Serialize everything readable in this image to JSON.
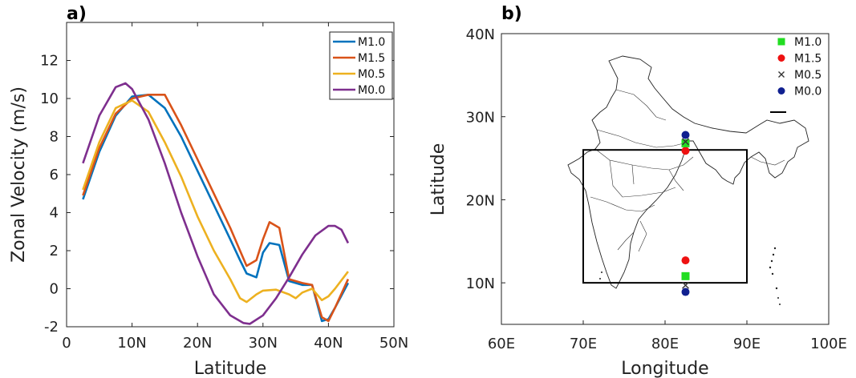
{
  "chart_data": [
    {
      "panel_label": "a)",
      "type": "line",
      "xlabel": "Latitude",
      "ylabel": "Zonal Velocity (m/s)",
      "xlim": [
        0,
        50
      ],
      "ylim": [
        -2,
        14
      ],
      "xticks": [
        0,
        10,
        20,
        30,
        40,
        50
      ],
      "xtick_labels": [
        "0",
        "10N",
        "20N",
        "30N",
        "40N",
        "50N"
      ],
      "yticks": [
        -2,
        0,
        2,
        4,
        6,
        8,
        10,
        12
      ],
      "ytick_labels": [
        "-2",
        "0",
        "2",
        "4",
        "6",
        "8",
        "10",
        "12"
      ],
      "grid": false,
      "legend_position": "top-right",
      "series": [
        {
          "name": "M1.0",
          "color": "#0072BD",
          "x": [
            2.5,
            5,
            7.5,
            10,
            12.5,
            15,
            17.5,
            20,
            22.5,
            25,
            26.5,
            27.5,
            29,
            30,
            31,
            32.5,
            34,
            36,
            37.5,
            39,
            40,
            41,
            43
          ],
          "y": [
            4.7,
            7.2,
            9.1,
            10.1,
            10.2,
            9.5,
            8.0,
            6.2,
            4.4,
            2.6,
            1.5,
            0.8,
            0.6,
            1.9,
            2.4,
            2.3,
            0.4,
            0.2,
            0.2,
            -1.7,
            -1.6,
            -1.0,
            0.3
          ]
        },
        {
          "name": "M1.5",
          "color": "#D95319",
          "x": [
            2.5,
            5,
            7.5,
            10,
            12.5,
            15,
            17.5,
            20,
            22.5,
            25,
            26.5,
            27.5,
            29,
            30,
            31,
            32.5,
            34,
            36,
            37.5,
            39,
            40,
            41,
            43
          ],
          "y": [
            4.9,
            7.4,
            9.2,
            10.0,
            10.2,
            10.2,
            8.6,
            6.8,
            5.0,
            3.2,
            2.0,
            1.2,
            1.5,
            2.6,
            3.5,
            3.2,
            0.5,
            0.3,
            0.2,
            -1.5,
            -1.7,
            -1.0,
            0.5
          ]
        },
        {
          "name": "M0.5",
          "color": "#EDB120",
          "x": [
            2.5,
            5,
            7.5,
            10,
            12.5,
            15,
            17.5,
            20,
            22.5,
            25,
            26.5,
            27.5,
            29,
            30,
            32,
            34,
            35,
            36,
            37.5,
            39,
            40,
            41,
            43
          ],
          "y": [
            5.2,
            7.7,
            9.5,
            9.9,
            9.3,
            7.7,
            5.9,
            3.8,
            2.0,
            0.5,
            -0.5,
            -0.7,
            -0.3,
            -0.1,
            -0.05,
            -0.3,
            -0.5,
            -0.2,
            0.0,
            -0.6,
            -0.4,
            0.0,
            0.9
          ]
        },
        {
          "name": "M0.0",
          "color": "#7E2F8E",
          "x": [
            2.5,
            5,
            7.5,
            9,
            10,
            12.5,
            15,
            17.5,
            20,
            22.5,
            25,
            27,
            28,
            30,
            32,
            34,
            36,
            38,
            40,
            41,
            42,
            43
          ],
          "y": [
            6.6,
            9.1,
            10.6,
            10.8,
            10.5,
            8.9,
            6.6,
            4.0,
            1.7,
            -0.3,
            -1.4,
            -1.8,
            -1.85,
            -1.4,
            -0.5,
            0.6,
            1.8,
            2.8,
            3.3,
            3.3,
            3.1,
            2.4
          ]
        }
      ]
    },
    {
      "panel_label": "b)",
      "type": "scatter",
      "xlabel": "Longitude",
      "ylabel": "Latitude",
      "xlim": [
        60,
        100
      ],
      "ylim": [
        5,
        40
      ],
      "xticks": [
        60,
        70,
        80,
        90,
        100
      ],
      "xtick_labels": [
        "60E",
        "70E",
        "80E",
        "90E",
        "100E"
      ],
      "yticks": [
        10,
        20,
        30,
        40
      ],
      "ytick_labels": [
        "10N",
        "20N",
        "30N",
        "40N"
      ],
      "grid": false,
      "legend_position": "top-right",
      "box": {
        "lon": [
          70,
          90
        ],
        "lat": [
          10,
          26
        ]
      },
      "series": [
        {
          "name": "M1.0",
          "color": "#22DD22",
          "marker": "square",
          "x": [
            82.5,
            82.5
          ],
          "y": [
            26.8,
            10.8
          ]
        },
        {
          "name": "M1.5",
          "color": "#EE1111",
          "marker": "circle",
          "x": [
            82.5,
            82.5
          ],
          "y": [
            25.9,
            12.7
          ]
        },
        {
          "name": "M0.5",
          "color": "#333333",
          "marker": "x",
          "x": [
            82.5,
            82.5
          ],
          "y": [
            27.0,
            9.7
          ]
        },
        {
          "name": "M0.0",
          "color": "#102090",
          "marker": "circle",
          "x": [
            82.5,
            82.5
          ],
          "y": [
            27.8,
            8.9
          ]
        }
      ]
    }
  ]
}
